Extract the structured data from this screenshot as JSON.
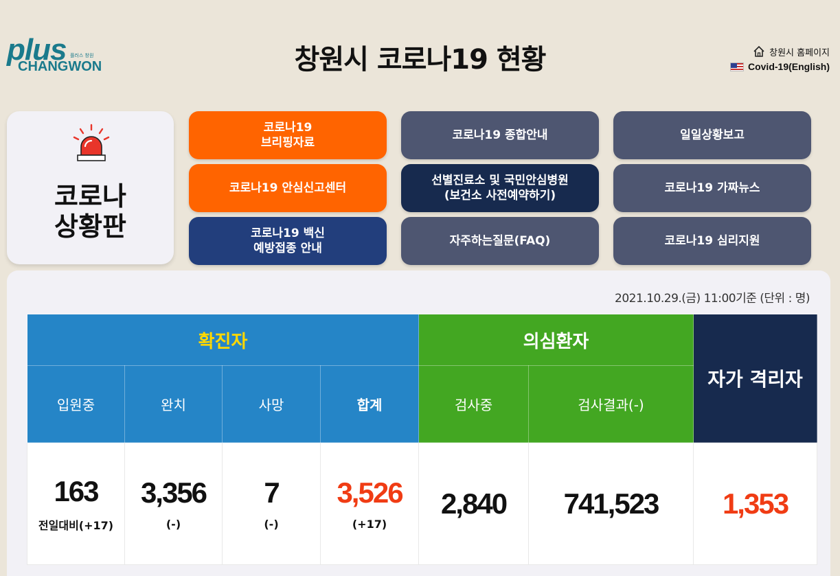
{
  "header": {
    "title": "창원시 코로나19 현황",
    "logo_main": "plus",
    "logo_small": "플러스 창원",
    "logo_sub": "CHANGWON",
    "home_link": "창원시 홈페이지",
    "english_link": "Covid-19(English)"
  },
  "board": {
    "title_line1": "코로나",
    "title_line2": "상황판"
  },
  "nav": {
    "briefing": "코로나19\n브리핑자료",
    "general_info": "코로나19 종합안내",
    "daily_report": "일일상황보고",
    "report_center": "코로나19 안심신고센터",
    "clinics": "선별진료소 및 국민안심병원\n(보건소 사전예약하기)",
    "fake_news": "코로나19 가짜뉴스",
    "vaccine": "코로나19 백신\n예방접종 안내",
    "faq": "자주하는질문(FAQ)",
    "psych_support": "코로나19 심리지원"
  },
  "stats": {
    "timestamp": "2021.10.29.(금) 11:00기준 (단위 : 명)",
    "headers": {
      "confirmed": "확진자",
      "suspected": "의심환자",
      "self_quarantine": "자가 격리자"
    },
    "subheaders": {
      "hospitalized": "입원중",
      "recovered": "완치",
      "deaths": "사망",
      "total": "합계",
      "testing": "검사중",
      "negative": "검사결과(-)"
    },
    "values": {
      "hospitalized": "163",
      "hospitalized_diff": "전일대비(+17)",
      "recovered": "3,356",
      "recovered_diff": "(-)",
      "deaths": "7",
      "deaths_diff": "(-)",
      "total": "3,526",
      "total_diff": "(+17)",
      "testing": "2,840",
      "negative": "741,523",
      "self_quarantine": "1,353"
    }
  },
  "colors": {
    "background": "#ebe5d9",
    "orange": "#ff6400",
    "slate": "#4e5671",
    "navy": "#172a4e",
    "blue_header": "#2585c7",
    "green_header": "#43a722",
    "highlight_red": "#f03c14",
    "confirmed_title": "#ffd800"
  }
}
